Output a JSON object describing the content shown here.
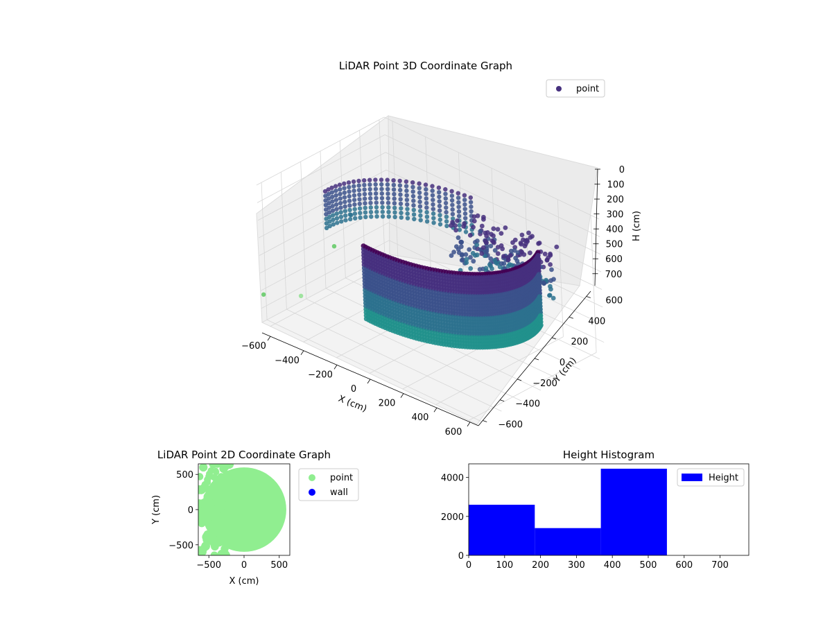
{
  "chart_data": [
    {
      "type": "scatter",
      "title": "LiDAR Point 3D Coordinate Graph",
      "xlabel": "X (cm)",
      "ylabel": "Y (cm)",
      "zlabel": "H (cm)",
      "x_ticks": [
        "−600",
        "−400",
        "−200",
        "0",
        "200",
        "400",
        "600"
      ],
      "y_ticks": [
        "−600",
        "−400",
        "−200",
        "0",
        "200",
        "400",
        "600"
      ],
      "z_ticks": [
        "0",
        "100",
        "200",
        "300",
        "400",
        "500",
        "600",
        "700"
      ],
      "xlim": [
        -650,
        650
      ],
      "ylim": [
        -650,
        650
      ],
      "zlim": [
        0,
        780
      ],
      "z_inverted": true,
      "legend": {
        "placement": "upper-right",
        "entries": [
          {
            "label": "point",
            "color": "#46307e"
          }
        ]
      },
      "colormap": [
        "#440154",
        "#46307e",
        "#3b518b",
        "#2c718e",
        "#21918c",
        "#5ec962",
        "#90e090"
      ],
      "structures": {
        "outer_wall": {
          "radius": 580,
          "angle_start_deg": -95,
          "angle_end_deg": 20,
          "h_min": 100,
          "h_max": 530
        },
        "back_ring": {
          "radius": 610,
          "angle_start_deg": 100,
          "angle_end_deg": 185,
          "h_min": 200,
          "h_max": 420
        },
        "inner_cluster": {
          "center": [
            300,
            250
          ],
          "h_min": 120,
          "h_max": 420
        },
        "scattered_points": [
          {
            "x": -640,
            "y": -640,
            "h": 620
          },
          {
            "x": -620,
            "y": -300,
            "h": 720
          },
          {
            "x": -600,
            "y": 200,
            "h": 400
          },
          {
            "x": -650,
            "y": 100,
            "h": 570
          },
          {
            "x": -500,
            "y": 400,
            "h": 680
          },
          {
            "x": 100,
            "y": 50,
            "h": 600
          },
          {
            "x": 300,
            "y": 150,
            "h": 630
          }
        ]
      }
    },
    {
      "type": "scatter",
      "title": "LiDAR Point 2D Coordinate Graph",
      "xlabel": "X (cm)",
      "ylabel": "Y (cm)",
      "x_ticks": [
        "−500",
        "0",
        "500"
      ],
      "y_ticks": [
        "500",
        "0",
        "−500"
      ],
      "xlim": [
        -650,
        650
      ],
      "ylim": [
        -650,
        650
      ],
      "legend": {
        "placement": "outside-right",
        "entries": [
          {
            "label": "point",
            "color": "#90ee90"
          },
          {
            "label": "wall",
            "color": "#0000ff"
          }
        ]
      },
      "disc": {
        "center": [
          0,
          0
        ],
        "radius": 600
      }
    },
    {
      "type": "bar",
      "title": "Height Histogram",
      "x_ticks": [
        "0",
        "100",
        "200",
        "300",
        "400",
        "500",
        "600",
        "700"
      ],
      "y_ticks": [
        "0",
        "2000",
        "4000"
      ],
      "xlim": [
        0,
        780
      ],
      "ylim": [
        0,
        4700
      ],
      "color": "#0000ff",
      "legend": {
        "placement": "upper-right",
        "entries": [
          {
            "label": "Height",
            "color": "#0000ff"
          }
        ]
      },
      "bins": [
        {
          "x0": 0,
          "x1": 184,
          "count": 2600
        },
        {
          "x0": 184,
          "x1": 368,
          "count": 1400
        },
        {
          "x0": 368,
          "x1": 552,
          "count": 4450
        },
        {
          "x0": 552,
          "x1": 736,
          "count": 0
        }
      ]
    }
  ]
}
